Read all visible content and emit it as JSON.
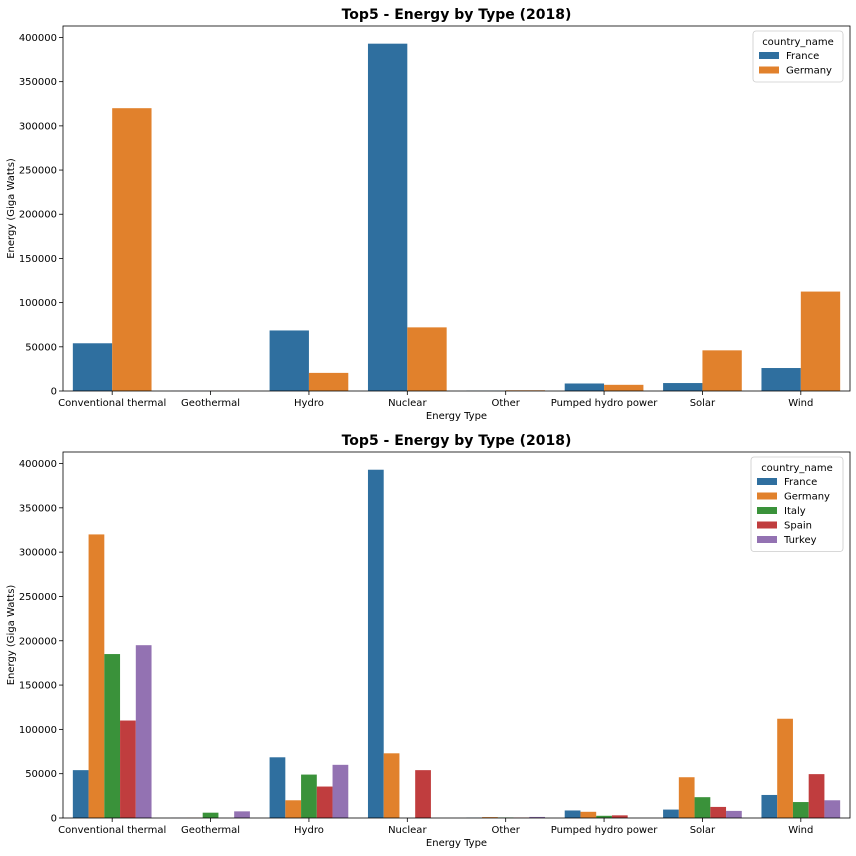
{
  "chart_data": [
    {
      "type": "bar",
      "title": "Top5 - Energy by Type (2018)",
      "xlabel": "Energy Type",
      "ylabel": "Energy (Giga Watts)",
      "ylim": [
        0,
        413000
      ],
      "yticks": [
        0,
        50000,
        100000,
        150000,
        200000,
        250000,
        300000,
        350000,
        400000
      ],
      "categories": [
        "Conventional thermal",
        "Geothermal",
        "Hydro",
        "Nuclear",
        "Other",
        "Pumped hydro power",
        "Solar",
        "Wind"
      ],
      "legend": {
        "title": "country_name",
        "position": "top-right"
      },
      "series": [
        {
          "name": "France",
          "color": "#2f6f9f",
          "values": [
            54000,
            100,
            68500,
            393000,
            300,
            8500,
            9000,
            26000
          ]
        },
        {
          "name": "Germany",
          "color": "#e1812c",
          "values": [
            320000,
            200,
            20500,
            72000,
            800,
            7000,
            46000,
            112500
          ]
        }
      ]
    },
    {
      "type": "bar",
      "title": "Top5 - Energy by Type (2018)",
      "xlabel": "Energy Type",
      "ylabel": "Energy (Giga Watts)",
      "ylim": [
        0,
        413000
      ],
      "yticks": [
        0,
        50000,
        100000,
        150000,
        200000,
        250000,
        300000,
        350000,
        400000
      ],
      "categories": [
        "Conventional thermal",
        "Geothermal",
        "Hydro",
        "Nuclear",
        "Other",
        "Pumped hydro power",
        "Solar",
        "Wind"
      ],
      "legend": {
        "title": "country_name",
        "position": "top-right"
      },
      "series": [
        {
          "name": "France",
          "color": "#2f6f9f",
          "values": [
            54000,
            100,
            68500,
            393000,
            300,
            8500,
            9500,
            26000
          ]
        },
        {
          "name": "Germany",
          "color": "#e1812c",
          "values": [
            320000,
            200,
            20000,
            73000,
            1000,
            7000,
            46000,
            112000
          ]
        },
        {
          "name": "Italy",
          "color": "#3a923a",
          "values": [
            185000,
            6000,
            49000,
            0,
            600,
            2500,
            23500,
            18000
          ]
        },
        {
          "name": "Spain",
          "color": "#c03d3e",
          "values": [
            110000,
            0,
            35500,
            54000,
            500,
            3000,
            12500,
            49500
          ]
        },
        {
          "name": "Turkey",
          "color": "#9372b2",
          "values": [
            195000,
            7500,
            60000,
            0,
            1200,
            0,
            8000,
            20000
          ]
        }
      ]
    }
  ]
}
